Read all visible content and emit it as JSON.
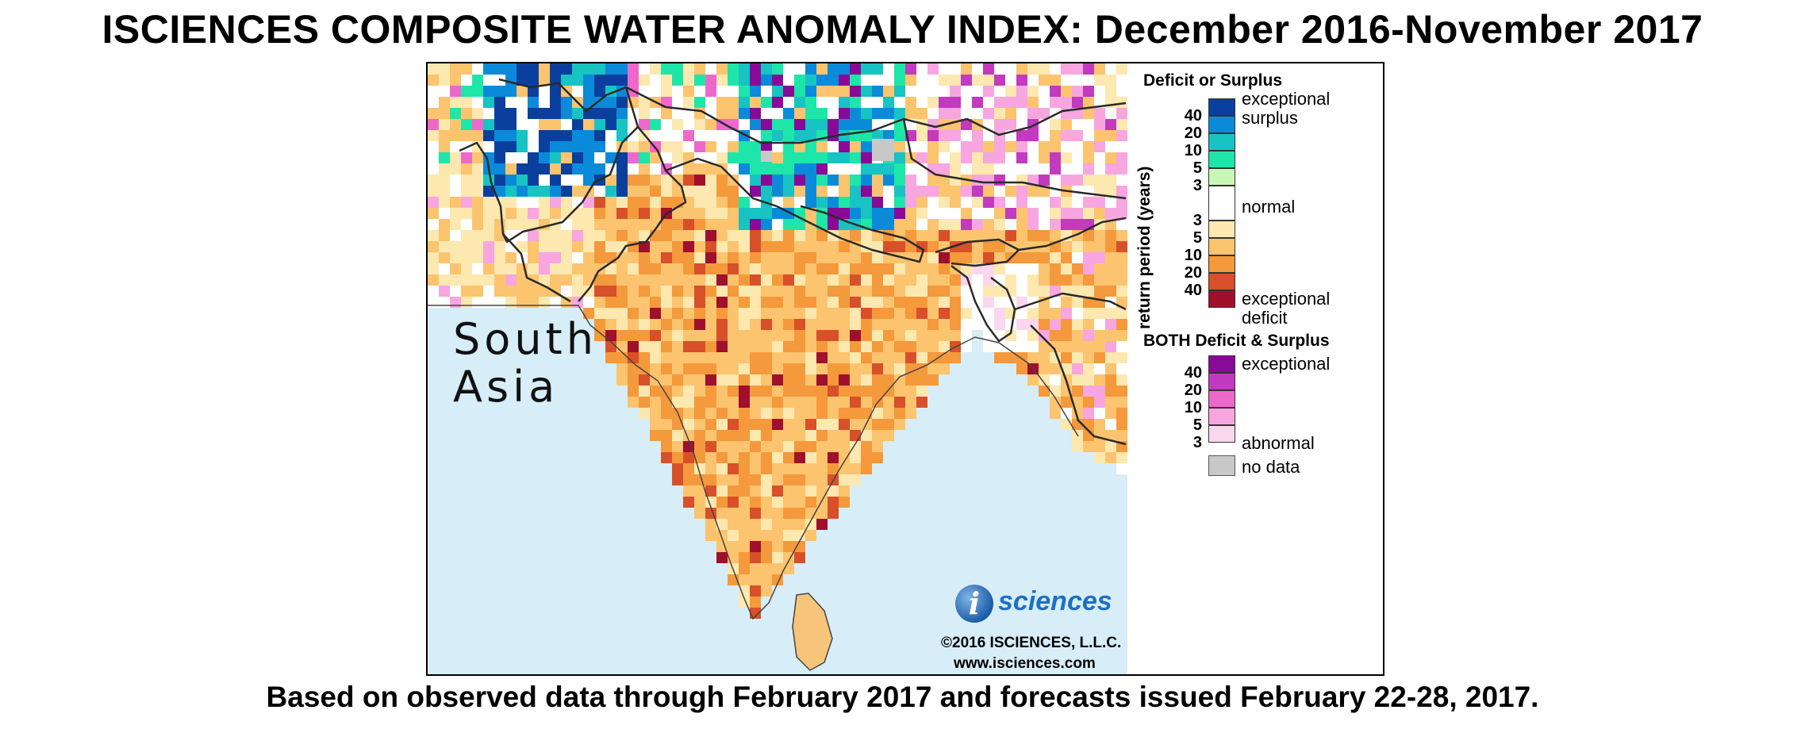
{
  "title": "ISCIENCES COMPOSITE WATER ANOMALY INDEX: December 2016-November 2017",
  "subtitle": "Based on observed data through February 2017 and forecasts issued February 22-28, 2017.",
  "map": {
    "region_label_line1": "South",
    "region_label_line2": "Asia",
    "logo_mark": "i",
    "logo_text": "sciences",
    "copyright": "©2016 ISCIENCES, L.L.C.",
    "website": "www.isciences.com"
  },
  "legend": {
    "deficit_surplus_title": "Deficit or Surplus",
    "axis_label": "return period (years)",
    "surplus_numbers": [
      "40",
      "20",
      "10",
      "5",
      "3"
    ],
    "deficit_numbers": [
      "3",
      "5",
      "10",
      "20",
      "40"
    ],
    "label_exceptional": "exceptional",
    "label_surplus": "surplus",
    "label_normal": "normal",
    "label_exceptional_deficit": "exceptional",
    "label_deficit": "deficit",
    "both_title": "BOTH Deficit & Surplus",
    "both_numbers": [
      "40",
      "20",
      "10",
      "5",
      "3"
    ],
    "both_exceptional": "exceptional",
    "both_abnormal": "abnormal",
    "no_data_label": "no data",
    "surplus_colors": [
      "#0a3f9e",
      "#0a8ad8",
      "#18c3c3",
      "#1ee6a8",
      "#c9f7b8"
    ],
    "deficit_colors": [
      "#fde8b0",
      "#fcc46e",
      "#f59a3c",
      "#d8502a",
      "#a0102c"
    ],
    "both_colors": [
      "#8a0a98",
      "#c23bbf",
      "#ee68cc",
      "#f8a6df",
      "#fbd6ef"
    ],
    "no_data_color": "#c8c8c8",
    "ocean_color": "#d7edf8"
  }
}
